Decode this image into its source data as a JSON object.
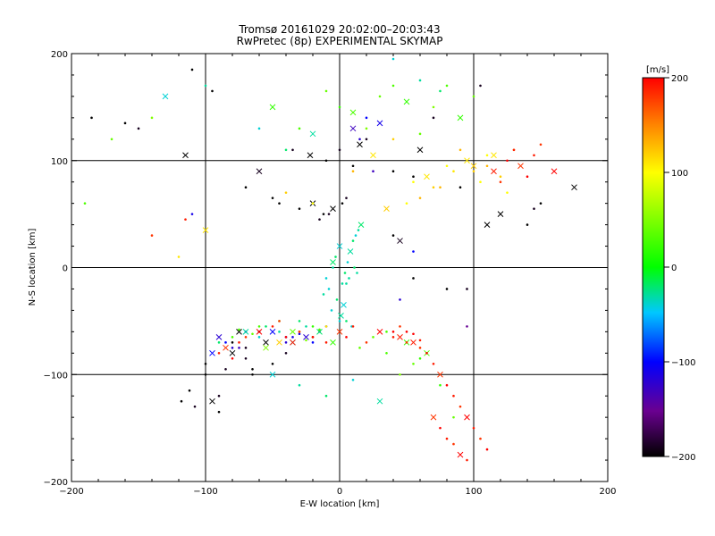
{
  "chart_data": {
    "type": "scatter",
    "title": "Tromsø 20161029 20:02:00–20:03:43",
    "subtitle": "RwPretec (8p) EXPERIMENTAL SKYMAP",
    "xlabel": "E-W location [km]",
    "ylabel": "N-S location [km]",
    "xlim": [
      -200,
      200
    ],
    "ylim": [
      -200,
      200
    ],
    "xticks": [
      "−200",
      "−100",
      "0",
      "100",
      "200"
    ],
    "yticks": [
      "−200",
      "−100",
      "0",
      "100",
      "200"
    ],
    "grid_lines": [
      -100,
      0,
      100
    ],
    "colorbar": {
      "label": "[m/s]",
      "range": [
        -200,
        200
      ],
      "ticks": [
        "200",
        "100",
        "0",
        "−100",
        "−200"
      ],
      "colormap": "black-purple-blue-cyan-green-yellow-red"
    },
    "point_markers": {
      "small": "dot",
      "large": "x"
    },
    "series": [
      {
        "x": [
          -185,
          -160,
          -150,
          -115,
          -110,
          -95,
          -70,
          -60,
          -50,
          -45,
          -35,
          -22,
          -10,
          0,
          10,
          15,
          20,
          40,
          55,
          60,
          70,
          90,
          105,
          120,
          140,
          145,
          150,
          175,
          -100,
          -90,
          -80,
          -75,
          -70,
          -65,
          -60,
          -55,
          -50,
          -40,
          -30,
          -20,
          -15,
          -12,
          -8,
          -5,
          2,
          5,
          40,
          45,
          55,
          80,
          95,
          110,
          -112,
          -118,
          -108,
          -95,
          -90,
          -100,
          -85,
          -80,
          -70,
          -65
        ],
        "y": [
          140,
          135,
          130,
          105,
          185,
          165,
          75,
          90,
          65,
          60,
          110,
          105,
          100,
          110,
          95,
          115,
          120,
          90,
          85,
          110,
          140,
          75,
          170,
          50,
          40,
          55,
          60,
          75,
          -100,
          -120,
          -70,
          -60,
          -85,
          -95,
          -60,
          -70,
          -90,
          -80,
          55,
          60,
          45,
          50,
          50,
          55,
          60,
          65,
          30,
          25,
          -10,
          -20,
          -20,
          40,
          -115,
          -125,
          -130,
          -125,
          -135,
          -90,
          -95,
          -80,
          -75,
          -100
        ],
        "v": [
          -200,
          -200,
          -190,
          -200,
          -200,
          -200,
          -200,
          -190,
          -200,
          -200,
          -190,
          -200,
          -200,
          -190,
          -200,
          -200,
          -190,
          -200,
          -200,
          -200,
          -190,
          -200,
          -190,
          -200,
          -200,
          -190,
          -200,
          -200,
          -200,
          -190,
          -200,
          -200,
          -190,
          -200,
          -190,
          -200,
          -200,
          -190,
          -200,
          -200,
          -190,
          -200,
          -190,
          -200,
          -200,
          -190,
          -200,
          -190,
          -200,
          -200,
          -190,
          -200,
          -200,
          -200,
          -190,
          -200,
          -200,
          -200,
          -190,
          -200,
          -190,
          -200
        ]
      },
      {
        "x": [
          -110,
          -90,
          -85,
          -75,
          -70,
          -50,
          -40,
          -35,
          -30,
          -25,
          -20,
          -15,
          -10,
          10,
          15,
          20,
          25,
          30,
          45,
          55,
          95,
          -95,
          -80,
          -40,
          -30
        ],
        "y": [
          50,
          -65,
          -70,
          -75,
          -60,
          -60,
          -70,
          -65,
          -60,
          -65,
          -70,
          -60,
          -55,
          130,
          120,
          140,
          90,
          135,
          -30,
          15,
          -55,
          -80,
          -75,
          -65,
          -62
        ],
        "v": [
          -110,
          -120,
          -100,
          -130,
          -110,
          -100,
          -120,
          -110,
          -90,
          -120,
          -100,
          -130,
          -110,
          -130,
          -120,
          -100,
          -130,
          -110,
          -120,
          -100,
          -150,
          -100,
          -120,
          -90,
          -110
        ]
      },
      {
        "x": [
          -130,
          -100,
          -60,
          -40,
          -20,
          -10,
          -5,
          -3,
          0,
          2,
          4,
          6,
          8,
          10,
          12,
          14,
          16,
          -8,
          -12,
          -2,
          3,
          7,
          11,
          -6,
          1,
          5,
          9,
          13,
          -15,
          -20,
          -25,
          -30,
          -35,
          -45,
          -55,
          -60,
          -70,
          40,
          60,
          75,
          -50,
          -30,
          -10,
          10,
          30,
          -90,
          0,
          5,
          -5
        ],
        "y": [
          160,
          170,
          130,
          110,
          125,
          -10,
          0,
          10,
          20,
          -15,
          -5,
          5,
          15,
          25,
          30,
          35,
          40,
          -20,
          -25,
          -30,
          -35,
          -10,
          0,
          -40,
          -45,
          -50,
          -55,
          -5,
          -60,
          -65,
          -55,
          -50,
          -70,
          -60,
          -55,
          -65,
          -60,
          195,
          175,
          165,
          -100,
          -110,
          -120,
          -105,
          -125,
          -70,
          -50,
          -15,
          5
        ],
        "v": [
          -40,
          -30,
          -40,
          -20,
          -30,
          -40,
          -30,
          -20,
          -40,
          -30,
          -20,
          -40,
          -30,
          -20,
          -40,
          -30,
          -20,
          -40,
          -30,
          -20,
          -40,
          -30,
          -20,
          -40,
          -30,
          -20,
          -40,
          -30,
          -20,
          -40,
          -30,
          -20,
          -40,
          -30,
          -20,
          -40,
          -30,
          -40,
          -30,
          -20,
          -40,
          -30,
          -20,
          -40,
          -30,
          -20,
          -40,
          -30,
          -20
        ]
      },
      {
        "x": [
          -190,
          -170,
          -140,
          -50,
          -30,
          -10,
          0,
          10,
          20,
          30,
          40,
          50,
          60,
          70,
          80,
          90,
          100,
          -60,
          -45,
          -35,
          -15,
          45,
          55,
          65,
          75,
          85,
          -80,
          -55,
          -20,
          25,
          35,
          50,
          -75,
          -65,
          -25,
          -5,
          15,
          35,
          60
        ],
        "y": [
          60,
          120,
          140,
          150,
          130,
          165,
          150,
          145,
          130,
          160,
          170,
          155,
          125,
          150,
          170,
          140,
          160,
          -55,
          -50,
          -60,
          -58,
          -100,
          -90,
          -80,
          -110,
          -140,
          -65,
          -75,
          -55,
          -65,
          -60,
          -70,
          -58,
          -62,
          -68,
          -70,
          -75,
          -80,
          -85
        ],
        "v": [
          30,
          40,
          50,
          20,
          30,
          40,
          20,
          30,
          50,
          40,
          30,
          20,
          40,
          50,
          30,
          20,
          40,
          30,
          20,
          40,
          30,
          50,
          40,
          30,
          20,
          40,
          30,
          50,
          20,
          40,
          30,
          20,
          30,
          40,
          50,
          20,
          40,
          30,
          20
        ]
      },
      {
        "x": [
          -100,
          -40,
          -20,
          10,
          25,
          40,
          55,
          60,
          65,
          70,
          80,
          90,
          95,
          100,
          105,
          110,
          115,
          120,
          125,
          -120,
          -45,
          -30,
          -20,
          -10,
          35,
          50,
          75,
          85,
          100,
          110,
          130
        ],
        "y": [
          35,
          70,
          60,
          90,
          105,
          120,
          80,
          65,
          85,
          75,
          95,
          110,
          100,
          90,
          80,
          95,
          105,
          85,
          70,
          10,
          -70,
          -60,
          -65,
          -55,
          55,
          60,
          75,
          90,
          95,
          105,
          110
        ],
        "v": [
          110,
          120,
          100,
          130,
          110,
          120,
          100,
          130,
          110,
          120,
          100,
          130,
          110,
          120,
          100,
          130,
          110,
          120,
          100,
          110,
          120,
          100,
          130,
          110,
          120,
          100,
          130,
          110,
          120,
          100,
          130
        ]
      },
      {
        "x": [
          -90,
          -85,
          -80,
          -75,
          -70,
          -60,
          -50,
          -45,
          -40,
          -35,
          -30,
          -20,
          -10,
          0,
          5,
          10,
          20,
          30,
          40,
          45,
          50,
          55,
          60,
          65,
          70,
          75,
          80,
          85,
          90,
          95,
          100,
          105,
          110,
          115,
          120,
          125,
          130,
          135,
          140,
          145,
          150,
          160,
          -115,
          -140,
          40,
          45,
          50,
          55,
          60,
          70,
          75,
          80,
          85,
          90,
          95
        ],
        "y": [
          -80,
          -75,
          -85,
          -70,
          -65,
          -60,
          -55,
          -50,
          -65,
          -70,
          -60,
          -65,
          -70,
          -60,
          -65,
          -55,
          -70,
          -60,
          -65,
          -55,
          -60,
          -70,
          -75,
          -80,
          -90,
          -100,
          -110,
          -120,
          -130,
          -140,
          -150,
          -160,
          -170,
          90,
          80,
          100,
          110,
          95,
          85,
          105,
          115,
          90,
          45,
          30,
          -60,
          -65,
          -70,
          -62,
          -68,
          -140,
          -150,
          -160,
          -165,
          -175,
          -180
        ],
        "v": [
          190,
          180,
          200,
          190,
          180,
          200,
          190,
          180,
          200,
          190,
          180,
          200,
          190,
          180,
          200,
          190,
          180,
          200,
          190,
          180,
          200,
          190,
          180,
          200,
          190,
          180,
          200,
          190,
          180,
          200,
          190,
          180,
          200,
          190,
          180,
          200,
          190,
          180,
          200,
          190,
          180,
          200,
          190,
          180,
          200,
          190,
          180,
          200,
          190,
          180,
          200,
          190,
          180,
          200,
          190
        ]
      }
    ]
  }
}
